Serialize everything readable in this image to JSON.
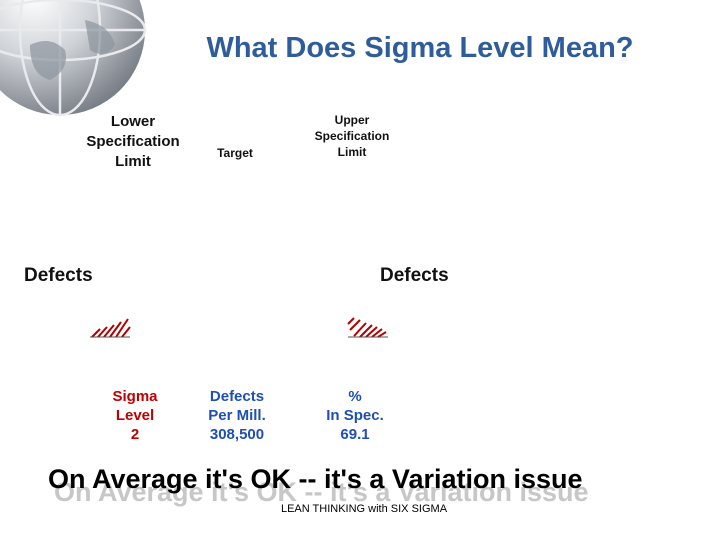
{
  "slide": {
    "title": "What Does Sigma Level Mean?",
    "lower_spec": {
      "line1": "Lower",
      "line2": "Specification",
      "line3": "Limit"
    },
    "target": "Target",
    "upper_spec": {
      "line1": "Upper",
      "line2": "Specification",
      "line3": "Limit"
    },
    "defects_left": "Defects",
    "defects_right": "Defects",
    "table": {
      "sigma": {
        "line1": "Sigma",
        "line2": "Level",
        "line3": "2"
      },
      "defects": {
        "line1": "Defects",
        "line2": "Per Mill.",
        "line3": "308,500"
      },
      "spec": {
        "line1": "%",
        "line2": "In Spec.",
        "line3": "69.1"
      }
    },
    "conclusion": "On Average it's OK -- it's a Variation issue",
    "footer": "LEAN THINKING with SIX SIGMA"
  },
  "colors": {
    "title": "#2f5d9b",
    "sigma_column": "#c00000",
    "data_columns": "#1f4fb4",
    "hatch": "#b00000"
  },
  "icons": [
    "globe-icon"
  ]
}
